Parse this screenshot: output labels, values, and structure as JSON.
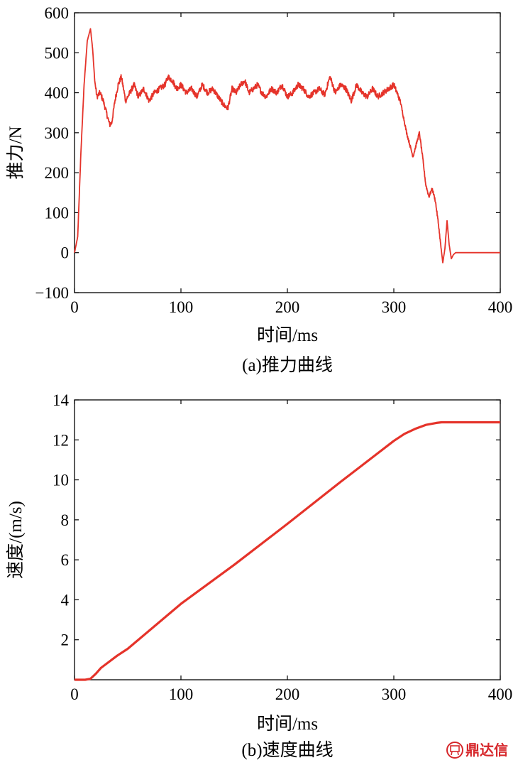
{
  "chart_data": [
    {
      "type": "line",
      "caption": "(a)推力曲线",
      "xlabel": "时间/ms",
      "ylabel": "推力/N",
      "xlim": [
        0,
        400
      ],
      "ylim": [
        -100,
        600
      ],
      "xticks": [
        "0",
        "100",
        "200",
        "300",
        "400"
      ],
      "yticks": [
        "−100",
        "0",
        "100",
        "200",
        "300",
        "400",
        "500",
        "600"
      ],
      "xtick_values": [
        0,
        100,
        200,
        300,
        400
      ],
      "ytick_values": [
        -100,
        0,
        100,
        200,
        300,
        400,
        500,
        600
      ],
      "grid": false,
      "color": "#e5332a",
      "series": [
        {
          "x": [
            0,
            3,
            6,
            9,
            12,
            15,
            17,
            19,
            21,
            24,
            27,
            30,
            33,
            35,
            38,
            41,
            44,
            48,
            52,
            56,
            60,
            65,
            70,
            75,
            80,
            85,
            88,
            92,
            96,
            100,
            105,
            110,
            115,
            120,
            125,
            130,
            135,
            140,
            144,
            148,
            152,
            156,
            160,
            164,
            168,
            172,
            176,
            180,
            185,
            190,
            195,
            200,
            205,
            210,
            215,
            220,
            225,
            230,
            235,
            240,
            245,
            250,
            255,
            260,
            265,
            270,
            275,
            280,
            285,
            290,
            295,
            300,
            303,
            306,
            309,
            312,
            315,
            318,
            321,
            324,
            327,
            330,
            333,
            336,
            339,
            342,
            344,
            346,
            348,
            350,
            352,
            354,
            356,
            358,
            360,
            380,
            400
          ],
          "values": [
            0,
            40,
            250,
            420,
            530,
            560,
            510,
            430,
            390,
            400,
            380,
            350,
            320,
            325,
            380,
            420,
            440,
            380,
            400,
            420,
            390,
            410,
            380,
            400,
            410,
            420,
            440,
            430,
            410,
            420,
            400,
            410,
            390,
            420,
            400,
            410,
            390,
            370,
            360,
            410,
            400,
            420,
            430,
            400,
            410,
            420,
            400,
            390,
            410,
            400,
            420,
            390,
            400,
            420,
            410,
            390,
            400,
            410,
            395,
            440,
            400,
            420,
            410,
            380,
            420,
            400,
            390,
            410,
            390,
            400,
            410,
            420,
            400,
            380,
            340,
            300,
            270,
            240,
            270,
            300,
            240,
            170,
            140,
            160,
            130,
            70,
            20,
            -25,
            10,
            80,
            20,
            -15,
            -5,
            0,
            0,
            0,
            0
          ]
        }
      ]
    },
    {
      "type": "line",
      "caption": "(b)速度曲线",
      "xlabel": "时间/ms",
      "ylabel": "速度/(m/s)",
      "xlim": [
        0,
        400
      ],
      "ylim": [
        0,
        14
      ],
      "xticks": [
        "0",
        "100",
        "200",
        "300",
        "400"
      ],
      "yticks": [
        "2",
        "4",
        "6",
        "8",
        "10",
        "12",
        "14"
      ],
      "xtick_values": [
        0,
        100,
        200,
        300,
        400
      ],
      "ytick_values": [
        2,
        4,
        6,
        8,
        10,
        12,
        14
      ],
      "grid": false,
      "color": "#e5332a",
      "series": [
        {
          "x": [
            0,
            5,
            10,
            15,
            20,
            25,
            30,
            40,
            50,
            100,
            150,
            200,
            250,
            300,
            310,
            320,
            330,
            340,
            345,
            350,
            400
          ],
          "values": [
            0,
            0,
            0,
            0.05,
            0.3,
            0.6,
            0.8,
            1.2,
            1.55,
            3.8,
            5.75,
            7.8,
            9.9,
            11.95,
            12.3,
            12.55,
            12.75,
            12.85,
            12.88,
            12.88,
            12.88
          ]
        }
      ]
    }
  ],
  "watermark": {
    "logo_icon": "dingdaxin-seal-icon",
    "text": "鼎达信"
  }
}
